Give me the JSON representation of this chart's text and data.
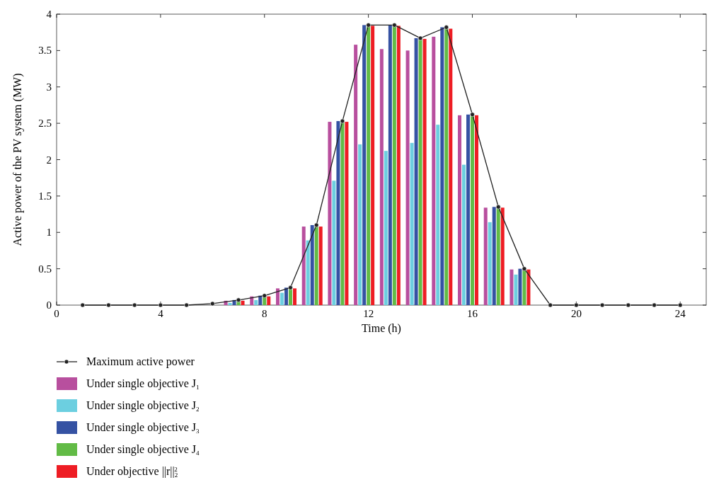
{
  "chart_data": {
    "type": "bar",
    "xlabel": "Time (h)",
    "ylabel": "Active power of the PV system (MW)",
    "x": [
      1,
      2,
      3,
      4,
      5,
      6,
      7,
      8,
      9,
      10,
      11,
      12,
      13,
      14,
      15,
      16,
      17,
      18,
      19,
      20,
      21,
      22,
      23,
      24
    ],
    "series": [
      {
        "name": "Maximum active power",
        "type": "line",
        "color": "#222222",
        "marker": "circle",
        "values": [
          0,
          0,
          0,
          0,
          0,
          0.02,
          0.07,
          0.13,
          0.24,
          1.1,
          2.53,
          3.85,
          3.85,
          3.67,
          3.82,
          2.62,
          1.35,
          0.5,
          0,
          0,
          0,
          0,
          0,
          0
        ]
      },
      {
        "name": "Under single objective J$_{1}$",
        "color": "#b84f9e",
        "values": [
          0,
          0,
          0,
          0,
          0,
          null,
          0.06,
          0.12,
          0.23,
          1.08,
          2.52,
          3.58,
          3.52,
          3.5,
          3.69,
          2.61,
          1.34,
          0.49,
          0,
          0,
          0,
          0,
          0,
          0
        ]
      },
      {
        "name": "Under single objective J$_{2}$",
        "color": "#6ccfe0",
        "values": [
          0,
          0,
          0,
          0,
          0,
          null,
          0.03,
          0.07,
          0.17,
          0.89,
          1.71,
          2.21,
          2.12,
          2.23,
          2.48,
          1.93,
          1.14,
          0.42,
          0,
          0,
          0,
          0,
          0,
          0
        ]
      },
      {
        "name": "Under single objective J$_{3}$",
        "color": "#3552a3",
        "values": [
          0,
          0,
          0,
          0,
          0,
          null,
          0.07,
          0.13,
          0.24,
          1.1,
          2.53,
          3.85,
          3.85,
          3.67,
          3.82,
          2.62,
          1.35,
          0.5,
          0,
          0,
          0,
          0,
          0,
          0
        ]
      },
      {
        "name": "Under single objective J$_{4}$",
        "color": "#62bb46",
        "values": [
          0,
          0,
          0,
          0,
          0,
          null,
          0.06,
          0.12,
          0.23,
          1.08,
          2.52,
          3.84,
          3.84,
          3.66,
          3.8,
          2.61,
          1.34,
          0.49,
          0,
          0,
          0,
          0,
          0,
          0
        ]
      },
      {
        "name": "Under objective ||r||$_{2}$$^{2}$",
        "color": "#ee1d24",
        "values": [
          0,
          0,
          0,
          0,
          0,
          null,
          0.06,
          0.12,
          0.23,
          1.08,
          2.52,
          3.84,
          3.84,
          3.66,
          3.8,
          2.61,
          1.34,
          0.49,
          0,
          0,
          0,
          0,
          0,
          0
        ]
      }
    ],
    "xlim": [
      0,
      25
    ],
    "xticks": [
      0,
      4,
      8,
      12,
      16,
      20,
      24
    ],
    "ylim": [
      0,
      4
    ],
    "yticks": [
      0,
      0.5,
      1,
      1.5,
      2,
      2.5,
      3,
      3.5,
      4
    ],
    "grid": false,
    "legend": "bottom"
  }
}
